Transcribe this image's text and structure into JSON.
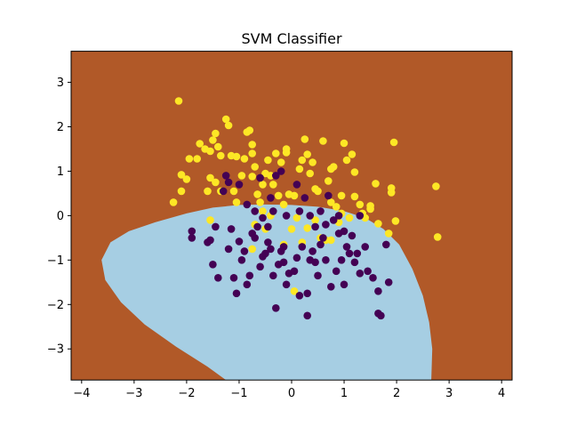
{
  "chart_data": {
    "type": "scatter",
    "title": "SVM Classifier",
    "xlabel": "",
    "ylabel": "",
    "xlim": [
      -4.2,
      4.2
    ],
    "ylim": [
      -3.7,
      3.7
    ],
    "xticks": [
      -4,
      -3,
      -2,
      -1,
      0,
      1,
      2,
      3,
      4
    ],
    "yticks": [
      -3,
      -2,
      -1,
      0,
      1,
      2,
      3
    ],
    "grid": false,
    "legend": "none",
    "colors": {
      "background_region": "#b15928",
      "decision_region": "#a6cee3",
      "class_0": "#440154",
      "class_1": "#fde725"
    },
    "decision_region_boundary": [
      [
        -3.62,
        -1.0
      ],
      [
        -3.45,
        -0.6
      ],
      [
        -3.1,
        -0.35
      ],
      [
        -2.6,
        -0.15
      ],
      [
        -2.0,
        0.05
      ],
      [
        -1.5,
        0.18
      ],
      [
        -1.0,
        0.24
      ],
      [
        -0.5,
        0.25
      ],
      [
        0.0,
        0.24
      ],
      [
        0.5,
        0.2
      ],
      [
        1.0,
        0.1
      ],
      [
        1.4,
        -0.05
      ],
      [
        1.75,
        -0.3
      ],
      [
        2.05,
        -0.65
      ],
      [
        2.3,
        -1.2
      ],
      [
        2.5,
        -1.8
      ],
      [
        2.62,
        -2.4
      ],
      [
        2.68,
        -3.0
      ],
      [
        2.66,
        -3.7
      ],
      [
        -1.25,
        -3.7
      ],
      [
        -1.6,
        -3.4
      ],
      [
        -2.2,
        -2.95
      ],
      [
        -2.8,
        -2.45
      ],
      [
        -3.25,
        -1.95
      ],
      [
        -3.55,
        -1.45
      ]
    ],
    "series": [
      {
        "class": 1,
        "points": [
          [
            -2.15,
            2.58
          ],
          [
            -2.25,
            0.3
          ],
          [
            -2.1,
            0.55
          ],
          [
            -2.1,
            0.92
          ],
          [
            -2.0,
            0.82
          ],
          [
            -1.95,
            1.28
          ],
          [
            -1.8,
            1.28
          ],
          [
            -1.75,
            1.62
          ],
          [
            -1.65,
            1.5
          ],
          [
            -1.55,
            1.45
          ],
          [
            -1.5,
            1.7
          ],
          [
            -1.45,
            1.85
          ],
          [
            -1.4,
            1.55
          ],
          [
            -1.35,
            1.35
          ],
          [
            -1.55,
            0.85
          ],
          [
            -1.6,
            0.55
          ],
          [
            -1.45,
            0.75
          ],
          [
            -1.35,
            0.55
          ],
          [
            -1.25,
            2.17
          ],
          [
            -1.2,
            2.03
          ],
          [
            -1.15,
            1.35
          ],
          [
            -1.05,
            1.33
          ],
          [
            -1.1,
            0.55
          ],
          [
            -0.95,
            0.9
          ],
          [
            -0.9,
            1.28
          ],
          [
            -0.85,
            1.88
          ],
          [
            -0.8,
            1.92
          ],
          [
            -0.75,
            1.6
          ],
          [
            -0.75,
            1.4
          ],
          [
            -0.7,
            1.1
          ],
          [
            -0.75,
            0.88
          ],
          [
            -0.65,
            0.48
          ],
          [
            -0.6,
            0.3
          ],
          [
            -0.55,
            0.7
          ],
          [
            -0.5,
            0.95
          ],
          [
            -0.45,
            1.25
          ],
          [
            -0.4,
            0.9
          ],
          [
            -0.35,
            0.7
          ],
          [
            -0.3,
            1.4
          ],
          [
            -0.2,
            1.2
          ],
          [
            -0.1,
            1.5
          ],
          [
            -0.1,
            1.42
          ],
          [
            -0.25,
            0.45
          ],
          [
            -0.15,
            0.25
          ],
          [
            -0.05,
            0.48
          ],
          [
            0.05,
            0.45
          ],
          [
            0.15,
            1.05
          ],
          [
            0.2,
            1.25
          ],
          [
            0.25,
            1.72
          ],
          [
            0.3,
            1.38
          ],
          [
            0.35,
            0.95
          ],
          [
            0.4,
            1.2
          ],
          [
            0.45,
            0.6
          ],
          [
            0.5,
            0.55
          ],
          [
            0.6,
            1.68
          ],
          [
            0.7,
            0.78
          ],
          [
            0.75,
            1.05
          ],
          [
            0.8,
            1.1
          ],
          [
            0.75,
            0.3
          ],
          [
            0.85,
            0.2
          ],
          [
            0.95,
            0.45
          ],
          [
            1.0,
            1.63
          ],
          [
            1.05,
            1.25
          ],
          [
            1.15,
            1.38
          ],
          [
            1.2,
            0.98
          ],
          [
            1.2,
            0.43
          ],
          [
            1.3,
            0.25
          ],
          [
            1.35,
            0.05
          ],
          [
            1.4,
            -0.05
          ],
          [
            1.5,
            0.15
          ],
          [
            1.5,
            0.22
          ],
          [
            1.6,
            0.72
          ],
          [
            1.65,
            -0.18
          ],
          [
            1.9,
            0.62
          ],
          [
            1.9,
            0.52
          ],
          [
            1.95,
            1.65
          ],
          [
            1.98,
            -0.12
          ],
          [
            1.85,
            -0.4
          ],
          [
            2.75,
            0.66
          ],
          [
            2.78,
            -0.48
          ],
          [
            -1.55,
            -0.1
          ],
          [
            -0.75,
            -0.75
          ],
          [
            -0.15,
            -0.65
          ],
          [
            -0.4,
            0.0
          ],
          [
            -0.5,
            -0.3
          ],
          [
            0.0,
            -0.3
          ],
          [
            0.2,
            -0.6
          ],
          [
            0.3,
            -0.28
          ],
          [
            0.45,
            -0.1
          ],
          [
            0.55,
            -0.5
          ],
          [
            0.65,
            -0.55
          ],
          [
            0.75,
            -0.55
          ],
          [
            0.05,
            -1.7
          ],
          [
            -0.7,
            -0.2
          ],
          [
            -1.05,
            0.3
          ],
          [
            -0.55,
            0.1
          ],
          [
            0.1,
            -0.05
          ],
          [
            0.9,
            -0.15
          ],
          [
            1.1,
            -0.05
          ],
          [
            0.95,
            0.05
          ]
        ]
      },
      {
        "class": 0,
        "points": [
          [
            -1.9,
            -0.35
          ],
          [
            -1.9,
            -0.5
          ],
          [
            -1.6,
            -0.6
          ],
          [
            -1.55,
            -0.55
          ],
          [
            -1.45,
            -0.25
          ],
          [
            -1.5,
            -1.1
          ],
          [
            -1.4,
            -1.4
          ],
          [
            -1.2,
            -0.75
          ],
          [
            -1.15,
            -0.3
          ],
          [
            -1.1,
            -1.4
          ],
          [
            -1.05,
            -1.75
          ],
          [
            -1.0,
            -0.58
          ],
          [
            -0.95,
            -1.0
          ],
          [
            -0.9,
            -0.8
          ],
          [
            -0.85,
            -1.55
          ],
          [
            -0.8,
            -1.35
          ],
          [
            -0.75,
            -0.4
          ],
          [
            -0.7,
            -0.5
          ],
          [
            -0.65,
            -0.25
          ],
          [
            -0.6,
            -1.15
          ],
          [
            -0.55,
            -0.92
          ],
          [
            -0.5,
            -0.85
          ],
          [
            -0.45,
            -0.6
          ],
          [
            -0.4,
            -0.75
          ],
          [
            -0.35,
            -1.35
          ],
          [
            -0.3,
            -2.08
          ],
          [
            -0.25,
            -1.1
          ],
          [
            -0.2,
            -0.8
          ],
          [
            -0.15,
            -1.05
          ],
          [
            -0.1,
            -1.55
          ],
          [
            -0.05,
            -1.3
          ],
          [
            0.05,
            -1.25
          ],
          [
            0.1,
            -0.95
          ],
          [
            0.15,
            -1.8
          ],
          [
            0.2,
            -0.7
          ],
          [
            0.3,
            -2.25
          ],
          [
            0.3,
            -1.75
          ],
          [
            0.35,
            -1.0
          ],
          [
            0.4,
            -0.8
          ],
          [
            0.45,
            -1.05
          ],
          [
            0.5,
            -1.35
          ],
          [
            0.55,
            -0.65
          ],
          [
            0.6,
            -0.5
          ],
          [
            0.65,
            -1.0
          ],
          [
            0.75,
            -1.6
          ],
          [
            0.85,
            -1.25
          ],
          [
            0.9,
            -0.4
          ],
          [
            0.95,
            -1.0
          ],
          [
            1.0,
            -1.55
          ],
          [
            1.05,
            -0.7
          ],
          [
            1.1,
            -0.85
          ],
          [
            1.15,
            -0.45
          ],
          [
            1.2,
            -1.05
          ],
          [
            1.25,
            -0.85
          ],
          [
            1.3,
            -1.3
          ],
          [
            1.4,
            -0.7
          ],
          [
            1.45,
            -1.25
          ],
          [
            1.55,
            -1.4
          ],
          [
            1.65,
            -1.7
          ],
          [
            1.65,
            -2.2
          ],
          [
            1.7,
            -2.25
          ],
          [
            1.8,
            -0.65
          ],
          [
            1.85,
            -1.5
          ],
          [
            -1.3,
            0.55
          ],
          [
            -1.25,
            0.9
          ],
          [
            -1.2,
            0.75
          ],
          [
            -1.0,
            0.7
          ],
          [
            -0.85,
            0.25
          ],
          [
            -0.7,
            0.1
          ],
          [
            -0.6,
            0.85
          ],
          [
            -0.55,
            -0.05
          ],
          [
            -0.4,
            0.4
          ],
          [
            -0.35,
            0.1
          ],
          [
            -0.3,
            0.9
          ],
          [
            -0.2,
            1.0
          ],
          [
            -0.1,
            0.0
          ],
          [
            0.1,
            0.7
          ],
          [
            0.15,
            0.1
          ],
          [
            0.25,
            0.4
          ],
          [
            0.35,
            0.0
          ],
          [
            0.45,
            -0.25
          ],
          [
            0.55,
            0.1
          ],
          [
            0.65,
            -0.2
          ],
          [
            0.7,
            0.45
          ],
          [
            0.8,
            -0.1
          ],
          [
            0.9,
            0.0
          ],
          [
            1.0,
            -0.35
          ],
          [
            1.3,
            0.0
          ],
          [
            -0.15,
            -0.7
          ],
          [
            -0.45,
            -0.25
          ]
        ]
      }
    ]
  }
}
